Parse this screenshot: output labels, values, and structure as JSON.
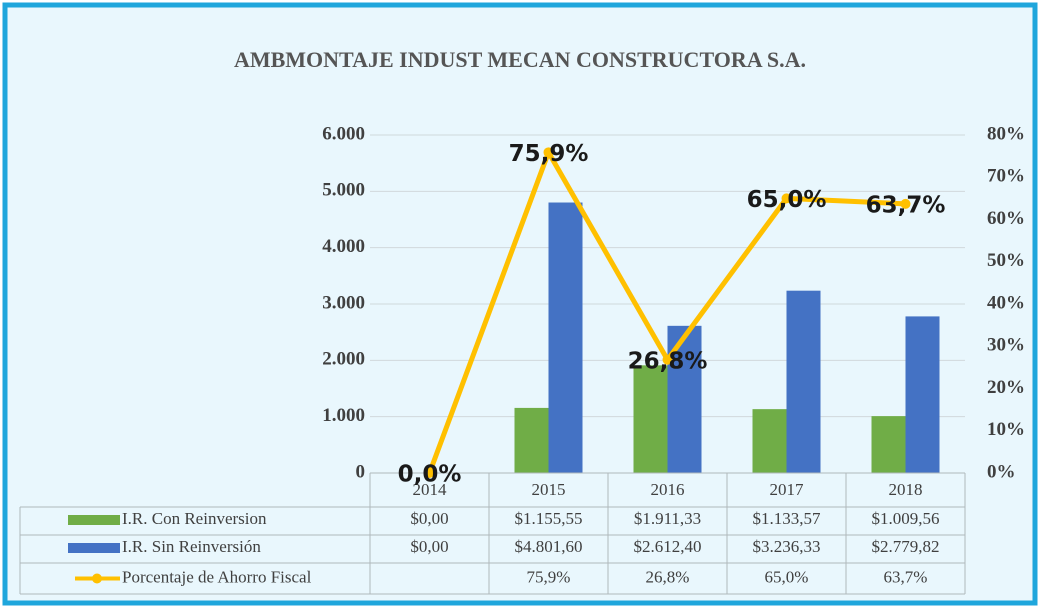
{
  "chart_data": {
    "type": "bar",
    "title": "AMBMONTAJE INDUST MECAN CONSTRUCTORA S.A.",
    "categories": [
      "2014",
      "2015",
      "2016",
      "2017",
      "2018"
    ],
    "series": [
      {
        "name": "I.R. Con Reinversion",
        "color": "#70ad47",
        "values": [
          0,
          1155.55,
          1911.33,
          1133.57,
          1009.56
        ],
        "value_labels": [
          "$0,00",
          "$1.155,55",
          "$1.911,33",
          "$1.133,57",
          "$1.009,56"
        ]
      },
      {
        "name": "I.R. Sin Reinversión",
        "color": "#4472c4",
        "values": [
          0,
          4801.6,
          2612.4,
          3236.33,
          2779.82
        ],
        "value_labels": [
          "$0,00",
          "$4.801,60",
          "$2.612,40",
          "$3.236,33",
          "$2.779,82"
        ]
      },
      {
        "name": "Porcentaje de Ahorro Fiscal",
        "type": "line",
        "axis": "y2",
        "color": "#ffc000",
        "values": [
          0,
          75.9,
          26.8,
          65.0,
          63.7
        ],
        "value_labels": [
          "0,0%",
          "75,9%",
          "26,8%",
          "65,0%",
          "63,7%"
        ],
        "table_labels": [
          null,
          "75,9%",
          "26,8%",
          "65,0%",
          "63,7%"
        ]
      }
    ],
    "ylim": [
      0,
      6000
    ],
    "yticks": [
      0,
      {
        "value": 1000,
        "label": "1.000"
      },
      {
        "value": 2000,
        "label": "2.000"
      },
      {
        "value": 3000,
        "label": "3.000"
      },
      {
        "value": 4000,
        "label": "4.000"
      },
      {
        "value": 5000,
        "label": "5.000"
      },
      {
        "value": 6000,
        "label": "6.000"
      }
    ],
    "y2lim": [
      0,
      80
    ],
    "y2ticks": [
      {
        "value": 0,
        "label": "0%"
      },
      {
        "value": 10,
        "label": "10%"
      },
      {
        "value": 20,
        "label": "20%"
      },
      {
        "value": 30,
        "label": "30%"
      },
      {
        "value": 40,
        "label": "40%"
      },
      {
        "value": 50,
        "label": "50%"
      },
      {
        "value": 60,
        "label": "60%"
      },
      {
        "value": 70,
        "label": "70%"
      },
      {
        "value": 80,
        "label": "80%"
      }
    ],
    "grid": true
  }
}
